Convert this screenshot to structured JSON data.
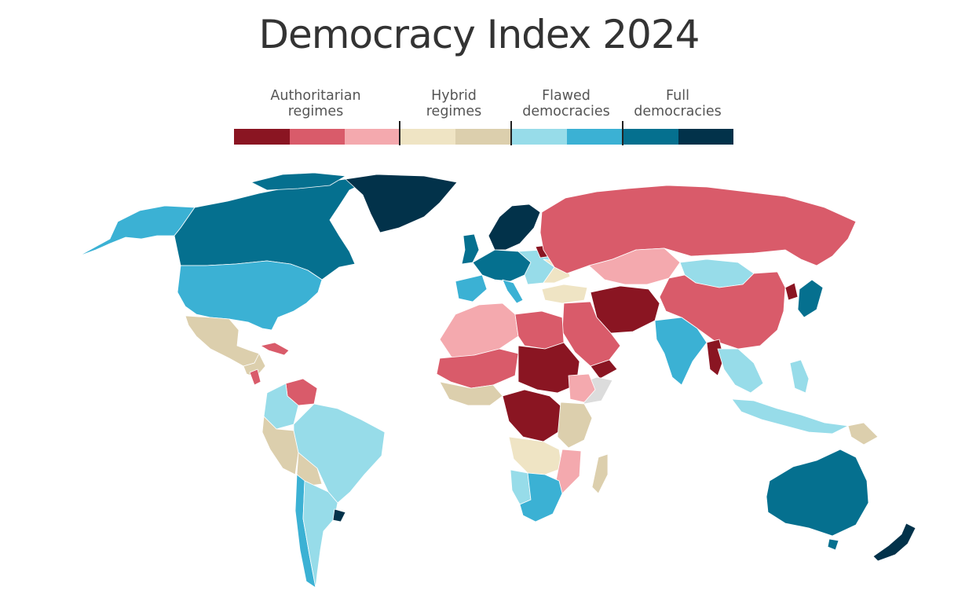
{
  "title": "Democracy Index 2024",
  "legend": {
    "groups": [
      {
        "label": "Authoritarian\nregimes"
      },
      {
        "label": "Hybrid\nregimes"
      },
      {
        "label": "Flawed\ndemocracies"
      },
      {
        "label": "Full\ndemocracies"
      }
    ],
    "colors": [
      "#8a1522",
      "#d95b6a",
      "#f4a9ae",
      "#efe4c4",
      "#dccfad",
      "#97dce9",
      "#3bb1d4",
      "#05708f",
      "#02324a"
    ]
  },
  "map": {
    "projection": "Robinson",
    "no_data_color": "#dcdcdc"
  }
}
